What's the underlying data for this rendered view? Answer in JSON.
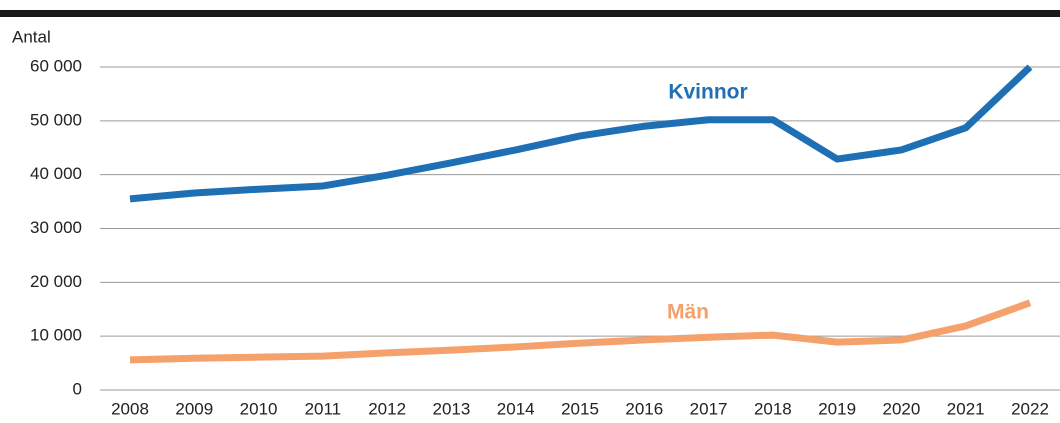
{
  "chart_data": {
    "type": "line",
    "y_axis_label": "Antal",
    "categories": [
      "2008",
      "2009",
      "2010",
      "2011",
      "2012",
      "2013",
      "2014",
      "2015",
      "2016",
      "2017",
      "2018",
      "2019",
      "2020",
      "2021",
      "2022"
    ],
    "series": [
      {
        "name": "Kvinnor",
        "color": "#1f6fb5",
        "values": [
          35500,
          36600,
          37300,
          37900,
          39900,
          42200,
          44600,
          47200,
          49000,
          50200,
          50200,
          42900,
          44600,
          48700,
          60000
        ]
      },
      {
        "name": "Män",
        "color": "#f4a16c",
        "values": [
          5600,
          5900,
          6100,
          6300,
          6900,
          7400,
          8000,
          8700,
          9300,
          9800,
          10200,
          8900,
          9300,
          11900,
          16200
        ]
      }
    ],
    "ylim": [
      0,
      60000
    ],
    "yticks": [
      0,
      {
        "value": 10000,
        "label": "10 000"
      },
      {
        "value": 20000,
        "label": "20 000"
      },
      {
        "value": 30000,
        "label": "30 000"
      },
      {
        "value": 40000,
        "label": "40 000"
      },
      {
        "value": 50000,
        "label": "50 000"
      },
      {
        "value": 60000,
        "label": "60 000"
      }
    ],
    "grid": true
  }
}
